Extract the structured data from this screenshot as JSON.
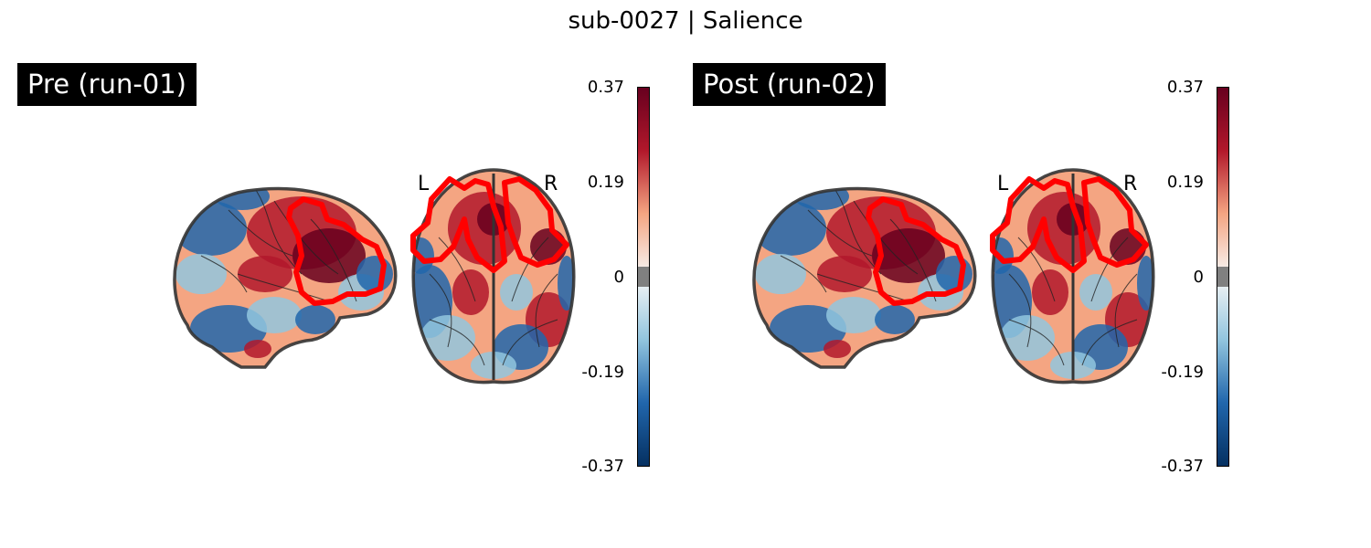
{
  "figure": {
    "title": "sub-0027 | Salience"
  },
  "panels": [
    {
      "label": "Pre (run-01)",
      "left_marker": "L",
      "right_marker": "R",
      "colorbar": {
        "ticks": [
          "0.37",
          "0.19",
          "0",
          "-0.19",
          "-0.37"
        ],
        "vmin": -0.37,
        "vmax": 0.37,
        "threshold_band": [
          -0.02,
          0.02
        ]
      }
    },
    {
      "label": "Post (run-02)",
      "left_marker": "L",
      "right_marker": "R",
      "colorbar": {
        "ticks": [
          "0.37",
          "0.19",
          "0",
          "-0.19",
          "-0.37"
        ],
        "vmin": -0.37,
        "vmax": 0.37,
        "threshold_band": [
          -0.02,
          0.02
        ]
      }
    }
  ],
  "colors": {
    "negative_strong": "#053061",
    "negative": "#2166ac",
    "negative_light": "#92c5de",
    "neutral": "#f7f7f7",
    "positive_light": "#f4a582",
    "positive": "#b2182b",
    "positive_strong": "#67001f",
    "roi_contour": "#ff0000",
    "threshold_gray": "#808080"
  }
}
